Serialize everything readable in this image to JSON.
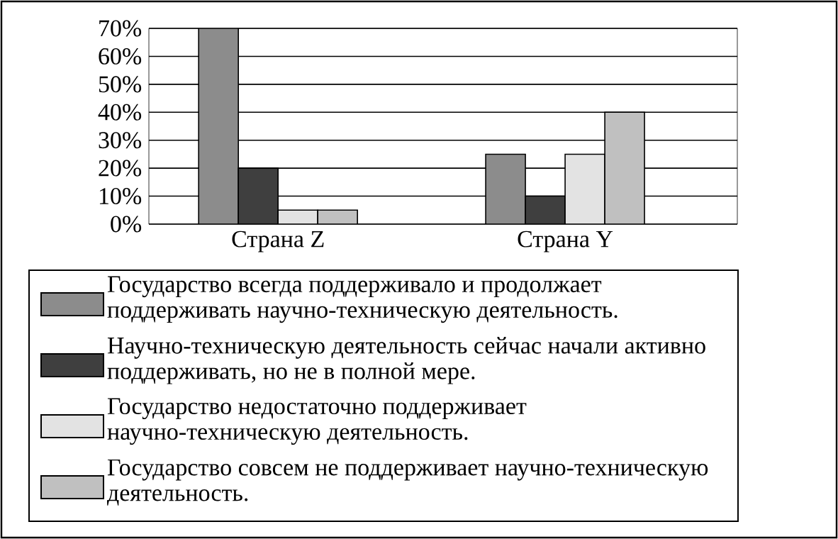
{
  "chart_data": {
    "type": "bar",
    "categories": [
      "Страна Z",
      "Страна Y"
    ],
    "series": [
      {
        "name": "Государство всегда поддерживало и продолжает поддерживать научно-техническую деятельность.",
        "color": "#8c8c8c",
        "values": [
          70,
          25
        ]
      },
      {
        "name": "Научно-техническую деятельность сейчас начали активно поддерживать, но не в полной мере.",
        "color": "#3f3f3f",
        "values": [
          20,
          10
        ]
      },
      {
        "name": "Государство недостаточно поддерживает научно-техническую деятельность.",
        "color": "#e3e3e3",
        "values": [
          5,
          25
        ]
      },
      {
        "name": "Государство совсем не поддерживает научно-техническую деятельность.",
        "color": "#c0c0c0",
        "values": [
          5,
          40
        ]
      }
    ],
    "ylim": [
      0,
      70
    ],
    "yticks": [
      {
        "value": 0,
        "label": "0%"
      },
      {
        "value": 10,
        "label": "10%"
      },
      {
        "value": 20,
        "label": "20%"
      },
      {
        "value": 30,
        "label": "30%"
      },
      {
        "value": 40,
        "label": "40%"
      },
      {
        "value": 50,
        "label": "50%"
      },
      {
        "value": 60,
        "label": "60%"
      },
      {
        "value": 70,
        "label": "70%"
      }
    ],
    "grid": "y",
    "legend": "bottom"
  }
}
